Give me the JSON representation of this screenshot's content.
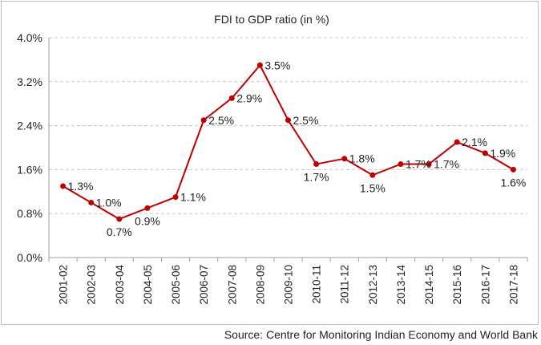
{
  "chart_data": {
    "type": "line",
    "title": "FDI to GDP ratio (in %)",
    "categories": [
      "2001-02",
      "2002-03",
      "2003-04",
      "2004-05",
      "2005-06",
      "2006-07",
      "2007-08",
      "2008-09",
      "2009-10",
      "2010-11",
      "2011-12",
      "2012-13",
      "2013-14",
      "2014-15",
      "2015-16",
      "2016-17",
      "2017-18"
    ],
    "series": [
      {
        "values": [
          1.3,
          1.0,
          0.7,
          0.9,
          1.1,
          2.5,
          2.9,
          3.5,
          2.5,
          1.7,
          1.8,
          1.5,
          1.7,
          1.7,
          2.1,
          1.9,
          1.6
        ],
        "labels": [
          "1.3%",
          "1.0%",
          "0.7%",
          "0.9%",
          "1.1%",
          "2.5%",
          "2.9%",
          "3.5%",
          "2.5%",
          "1.7%",
          "1.8%",
          "1.5%",
          "1.7%",
          "1.7%",
          "2.1%",
          "1.9%",
          "1.6%"
        ]
      }
    ],
    "y_ticks": [
      "0.0%",
      "0.8%",
      "1.6%",
      "2.4%",
      "3.2%",
      "4.0%"
    ],
    "ylim": [
      0,
      4.0
    ],
    "grid": "horizontal-dashed",
    "line_color": "#c00000"
  },
  "source_note": "Source: Centre for Monitoring Indian Economy and World Bank"
}
